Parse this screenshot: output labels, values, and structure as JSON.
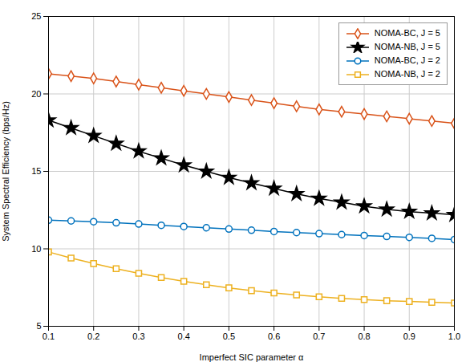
{
  "chart_data": {
    "type": "line",
    "x": [
      0.1,
      0.15,
      0.2,
      0.25,
      0.3,
      0.35,
      0.4,
      0.45,
      0.5,
      0.55,
      0.6,
      0.65,
      0.7,
      0.75,
      0.8,
      0.85,
      0.9,
      0.95,
      1.0
    ],
    "series": [
      {
        "name": "NOMA-BC, J = 5",
        "color": "#d95319",
        "marker": "diamond",
        "values": [
          21.3,
          21.15,
          21.0,
          20.8,
          20.6,
          20.4,
          20.2,
          20.0,
          19.8,
          19.6,
          19.4,
          19.2,
          19.0,
          18.85,
          18.7,
          18.55,
          18.4,
          18.25,
          18.1
        ]
      },
      {
        "name": "NOMA-NB, J = 5",
        "color": "#000000",
        "marker": "star",
        "values": [
          18.3,
          17.8,
          17.3,
          16.8,
          16.3,
          15.85,
          15.4,
          15.0,
          14.6,
          14.25,
          13.9,
          13.55,
          13.25,
          13.0,
          12.75,
          12.55,
          12.4,
          12.3,
          12.2
        ]
      },
      {
        "name": "NOMA-BC, J = 2",
        "color": "#0072bd",
        "marker": "circle",
        "values": [
          11.85,
          11.8,
          11.75,
          11.68,
          11.6,
          11.52,
          11.44,
          11.36,
          11.28,
          11.2,
          11.12,
          11.05,
          10.98,
          10.92,
          10.86,
          10.8,
          10.74,
          10.68,
          10.6
        ]
      },
      {
        "name": "NOMA-NB, J = 2",
        "color": "#edb120",
        "marker": "square",
        "values": [
          9.8,
          9.4,
          9.05,
          8.72,
          8.42,
          8.15,
          7.9,
          7.68,
          7.48,
          7.3,
          7.15,
          7.02,
          6.9,
          6.8,
          6.72,
          6.65,
          6.6,
          6.55,
          6.5
        ]
      }
    ],
    "xlabel": "Imperfect SIC parameter α",
    "ylabel": "System Spectral Efficiency (bps/Hz)",
    "xlim": [
      0.1,
      1.0
    ],
    "ylim": [
      5,
      25
    ],
    "xticks": [
      0.1,
      0.2,
      0.3,
      0.4,
      0.5,
      0.6,
      0.7,
      0.8,
      0.9,
      {
        "value": 1.0,
        "label": "1.0"
      }
    ],
    "yticks": [
      5,
      10,
      15,
      20,
      25
    ],
    "grid": true,
    "legend": "upper right"
  }
}
